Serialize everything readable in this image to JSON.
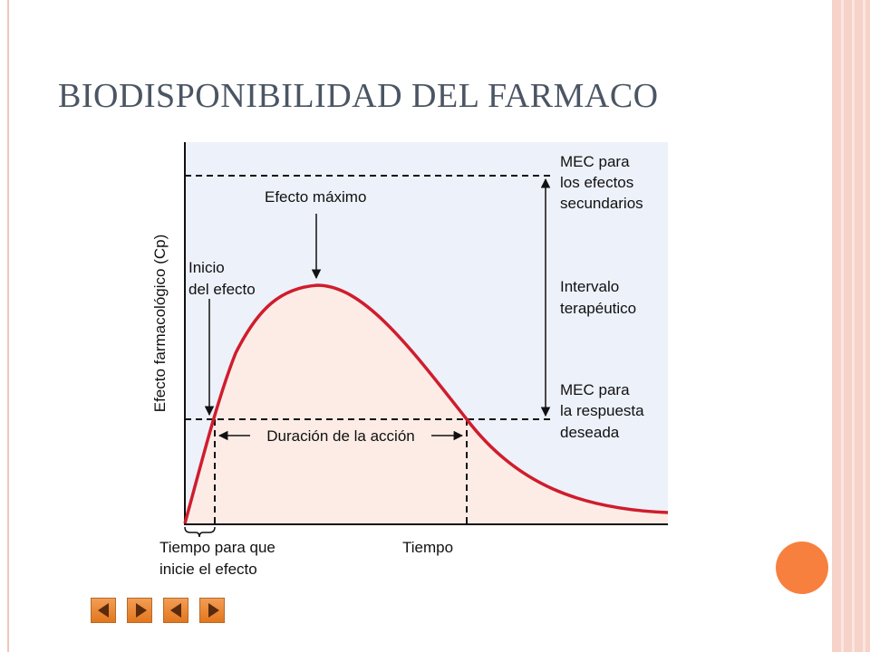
{
  "slide": {
    "title": "BIODISPONIBILIDAD DEL FARMACO"
  },
  "diagram": {
    "y_axis_label": "Efecto farmacológico (Cp)",
    "x_axis_label": "Tiempo",
    "peak_label": "Efecto máximo",
    "onset_label_line1": "Inicio",
    "onset_label_line2": "del efecto",
    "duration_label": "Duración de la acción",
    "onset_time_label_line1": "Tiempo para que",
    "onset_time_label_line2": "inicie el efecto",
    "mec_side_effects_line1": "MEC para",
    "mec_side_effects_line2": "los efectos",
    "mec_side_effects_line3": "secundarios",
    "therapeutic_line1": "Intervalo",
    "therapeutic_line2": "terapéutico",
    "mec_desired_line1": "MEC para",
    "mec_desired_line2": "la respuesta",
    "mec_desired_line3": "deseada",
    "colors": {
      "plot_background": "#edf1fa",
      "area_fill": "#fdece6",
      "curve": "#cf1d2d",
      "dashed_lines": "#111111"
    }
  },
  "navigation": {
    "buttons": [
      "first",
      "previous",
      "next",
      "last"
    ]
  }
}
